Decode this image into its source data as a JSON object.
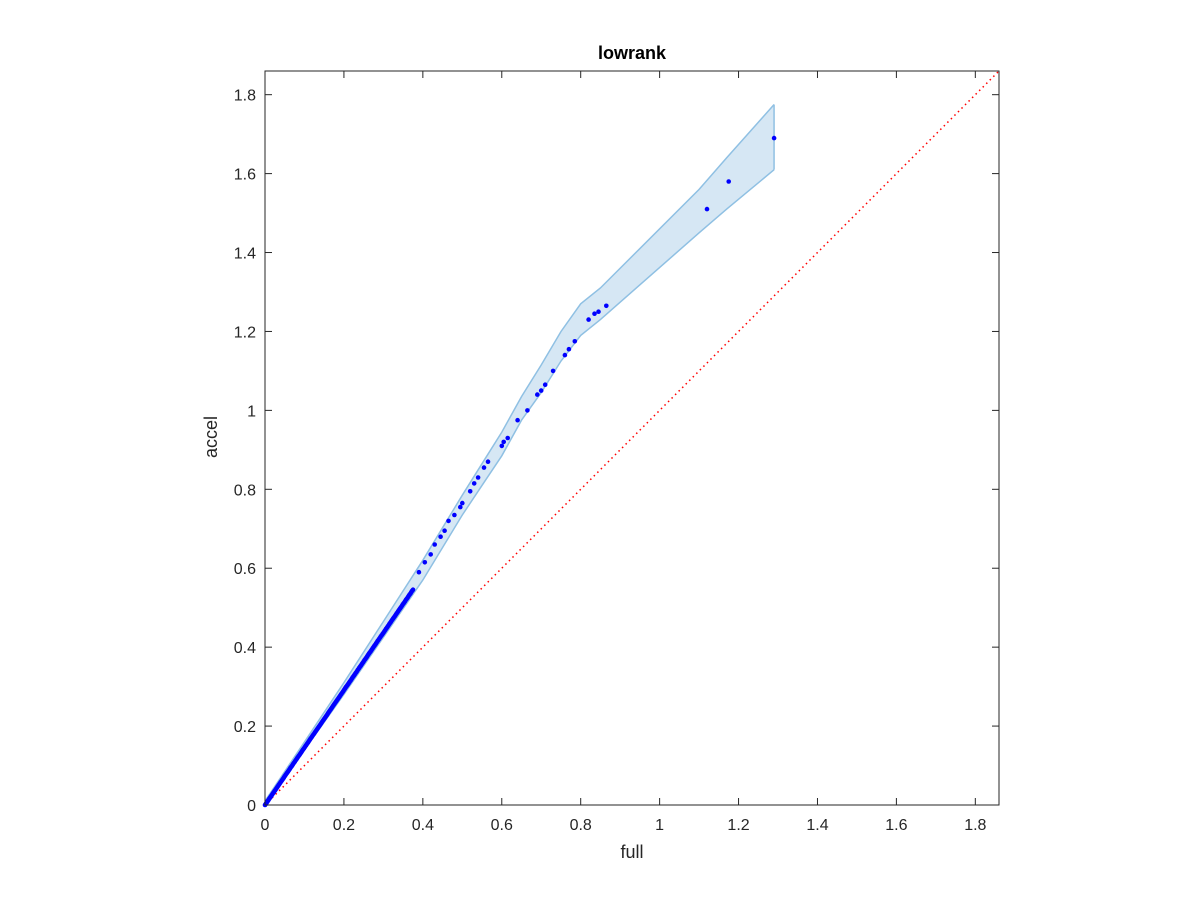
{
  "chart_data": {
    "type": "scatter",
    "title": "lowrank",
    "xlabel": "full",
    "ylabel": "accel",
    "xlim": [
      0,
      1.86
    ],
    "ylim": [
      0,
      1.86
    ],
    "xticks": [
      0,
      0.2,
      0.4,
      0.6,
      0.8,
      1,
      1.2,
      1.4,
      1.6,
      1.8
    ],
    "yticks": [
      0,
      0.2,
      0.4,
      0.6,
      0.8,
      1,
      1.2,
      1.4,
      1.6,
      1.8
    ],
    "xtick_labels": [
      "0",
      "0.2",
      "0.4",
      "0.6",
      "0.8",
      "1",
      "1.2",
      "1.4",
      "1.6",
      "1.8"
    ],
    "ytick_labels": [
      "0",
      "0.2",
      "0.4",
      "0.6",
      "0.8",
      "1",
      "1.2",
      "1.4",
      "1.6",
      "1.8"
    ],
    "grid": false,
    "colors": {
      "points": "#0000ff",
      "band_fill": "#d6e7f4",
      "band_edge": "#8fc0e3",
      "reference_line": "#ff0000",
      "axes": "#262626"
    },
    "reference_line": {
      "style": "dotted",
      "from": [
        0,
        0
      ],
      "to": [
        1.86,
        1.86
      ]
    },
    "band": {
      "x": [
        0,
        0.05,
        0.1,
        0.2,
        0.3,
        0.4,
        0.5,
        0.55,
        0.6,
        0.65,
        0.7,
        0.75,
        0.8,
        0.85,
        1.1,
        1.17,
        1.29
      ],
      "upper": [
        0.01,
        0.085,
        0.16,
        0.31,
        0.465,
        0.62,
        0.785,
        0.865,
        0.945,
        1.035,
        1.115,
        1.2,
        1.27,
        1.31,
        1.56,
        1.64,
        1.775
      ],
      "lower": [
        0,
        0.07,
        0.14,
        0.28,
        0.425,
        0.57,
        0.735,
        0.81,
        0.885,
        0.975,
        1.045,
        1.125,
        1.19,
        1.23,
        1.45,
        1.51,
        1.61
      ]
    },
    "series": [
      {
        "x": [
          0.64,
          0.665,
          0.69,
          0.7,
          0.71,
          0.73,
          0.76,
          0.77,
          0.785,
          0.82,
          0.835,
          0.845,
          0.865,
          1.12,
          1.175,
          1.29,
          0.6,
          0.605,
          0.615,
          0.555,
          0.565,
          0.54,
          0.53,
          0.52,
          0.5,
          0.495,
          0.48,
          0.465,
          0.455,
          0.445,
          0.43,
          0.42,
          0.405,
          0.39
        ],
        "y": [
          0.975,
          1.0,
          1.04,
          1.05,
          1.065,
          1.1,
          1.14,
          1.155,
          1.175,
          1.23,
          1.245,
          1.25,
          1.265,
          1.51,
          1.58,
          1.69,
          0.91,
          0.92,
          0.93,
          0.855,
          0.87,
          0.83,
          0.815,
          0.795,
          0.765,
          0.755,
          0.735,
          0.72,
          0.695,
          0.68,
          0.66,
          0.635,
          0.615,
          0.59
        ],
        "dense_segment": {
          "x_start": 0,
          "x_end": 0.375,
          "slope": 1.455,
          "count": 220
        }
      }
    ]
  }
}
